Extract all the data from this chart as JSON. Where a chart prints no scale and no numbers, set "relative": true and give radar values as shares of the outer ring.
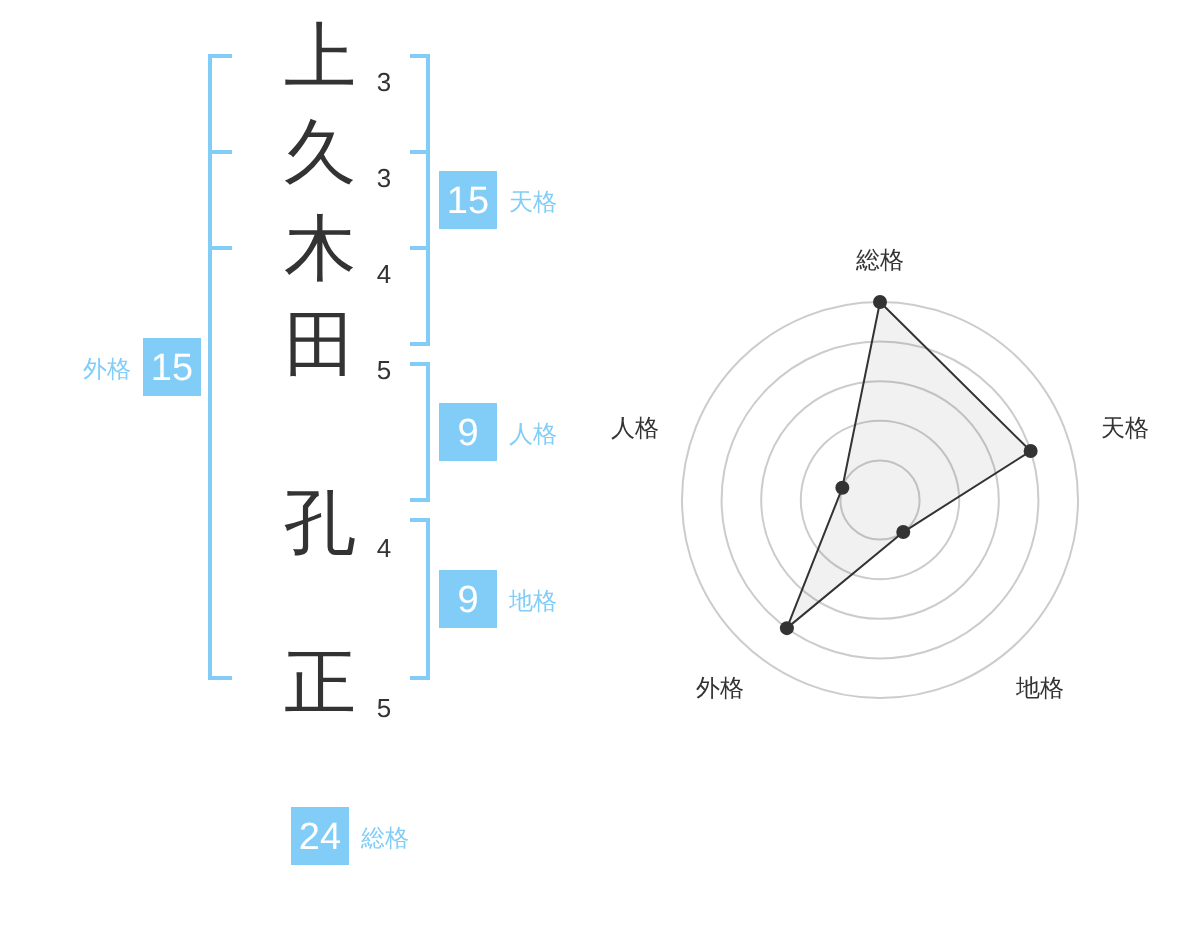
{
  "chart_data": [
    {
      "type": "other",
      "categories": [
        "上",
        "久",
        "木",
        "田",
        "孔",
        "正"
      ],
      "values": [
        3,
        3,
        4,
        5,
        4,
        5
      ],
      "color": "#333333",
      "data_labels": true
    },
    {
      "type": "other",
      "categories": [
        "天格",
        "人格",
        "地格",
        "総格",
        "外格"
      ],
      "values": [
        15,
        9,
        9,
        24,
        15
      ],
      "color": "#82cdf8",
      "data_labels": true
    },
    {
      "type": "radar",
      "categories": [
        "総格",
        "天格",
        "地格",
        "外格",
        "人格"
      ],
      "relative": true,
      "grid": true,
      "marker": "circle",
      "series": [
        {
          "color": "#333333",
          "values": [
            1,
            0.8,
            0.2,
            0.8,
            0.2
          ]
        }
      ]
    }
  ]
}
